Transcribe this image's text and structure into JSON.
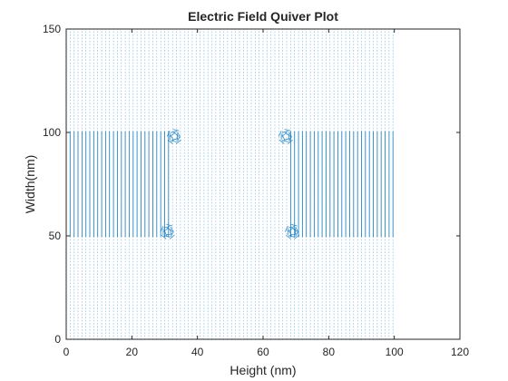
{
  "chart_data": {
    "type": "quiver",
    "title": "Electric Field Quiver Plot",
    "xlabel": "Height (nm)",
    "ylabel": "Width(nm)",
    "xlim": [
      0,
      120
    ],
    "ylim": [
      0,
      150
    ],
    "xticks": [
      0,
      20,
      40,
      60,
      80,
      100,
      120
    ],
    "yticks": [
      0,
      50,
      100,
      150
    ],
    "grid": false,
    "legend": "none",
    "color": "#0072BD",
    "field_region": {
      "x": [
        0,
        100
      ],
      "y": [
        0,
        150
      ]
    },
    "strong_band": {
      "y": [
        50,
        100
      ],
      "x_ranges": [
        [
          0,
          32
        ],
        [
          68,
          100
        ]
      ]
    },
    "corner_vortices": [
      [
        33,
        98
      ],
      [
        31,
        52
      ],
      [
        67,
        98
      ],
      [
        69,
        52
      ]
    ]
  }
}
